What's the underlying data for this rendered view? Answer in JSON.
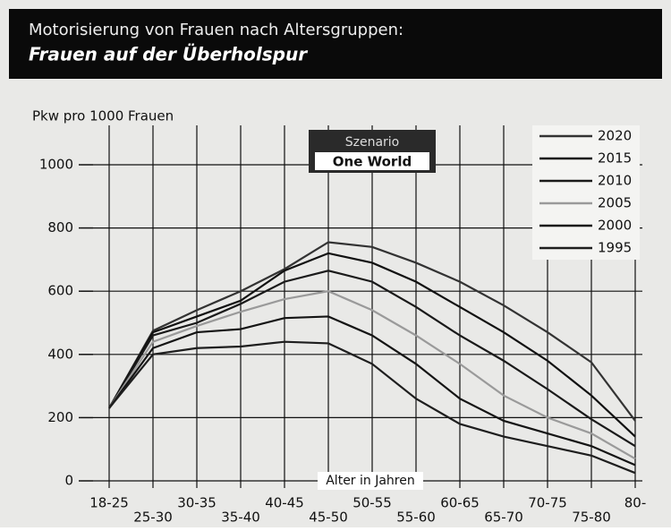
{
  "chart_data": {
    "type": "line",
    "title": "Motorisierung von Frauen nach Altersgruppen:",
    "subtitle": "Frauen auf der Überholspur",
    "y_label": "Pkw pro 1000 Frauen",
    "x_label": "Alter in Jahren",
    "annotation": [
      "Szenario",
      "One World"
    ],
    "categories": [
      "18-25",
      "25-30",
      "30-35",
      "35-40",
      "40-45",
      "45-50",
      "50-55",
      "55-60",
      "60-65",
      "65-70",
      "70-75",
      "75-80",
      "80-"
    ],
    "ylim": [
      0,
      1000
    ],
    "yticks": [
      0,
      200,
      400,
      600,
      800,
      1000
    ],
    "grid": true,
    "legend": "upper right",
    "series": [
      {
        "name": "2020",
        "color": "#333333",
        "values": [
          230,
          475,
          540,
          600,
          670,
          755,
          740,
          690,
          630,
          555,
          470,
          375,
          190
        ]
      },
      {
        "name": "2015",
        "color": "#111111",
        "values": [
          230,
          470,
          520,
          570,
          665,
          720,
          690,
          630,
          550,
          470,
          380,
          270,
          140
        ]
      },
      {
        "name": "2010",
        "color": "#1a1a1a",
        "values": [
          230,
          460,
          500,
          560,
          630,
          665,
          630,
          550,
          460,
          380,
          290,
          195,
          110
        ]
      },
      {
        "name": "2005",
        "color": "#9a9a9a",
        "values": [
          230,
          440,
          490,
          535,
          575,
          600,
          540,
          460,
          370,
          270,
          200,
          150,
          70
        ]
      },
      {
        "name": "2000",
        "color": "#141414",
        "values": [
          230,
          420,
          470,
          480,
          515,
          520,
          460,
          370,
          260,
          190,
          150,
          110,
          50
        ]
      },
      {
        "name": "1995",
        "color": "#1e1e1e",
        "values": [
          230,
          400,
          420,
          425,
          440,
          435,
          370,
          260,
          180,
          140,
          110,
          80,
          25
        ]
      }
    ]
  }
}
